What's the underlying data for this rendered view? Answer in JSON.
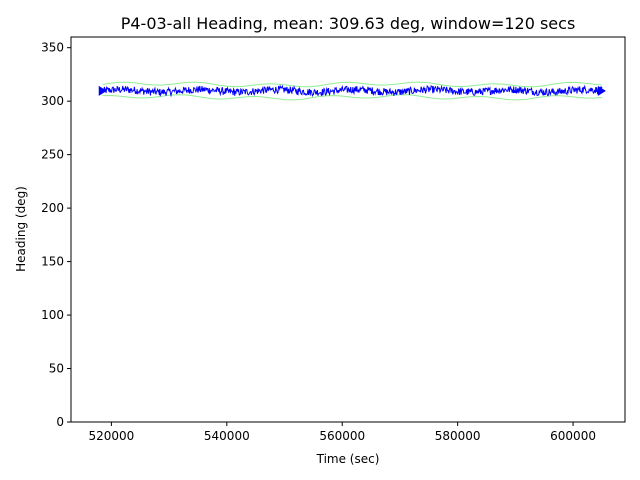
{
  "chart_data": {
    "type": "line",
    "title": "P4-03-all Heading, mean: 309.63 deg, window=120 secs",
    "xlabel": "Time (sec)",
    "ylabel": "Heading (deg)",
    "xlim": [
      513000,
      609000
    ],
    "ylim": [
      0,
      360
    ],
    "xticks": [
      520000,
      540000,
      560000,
      580000,
      600000
    ],
    "xtick_labels": [
      "520000",
      "540000",
      "560000",
      "580000",
      "600000"
    ],
    "yticks": [
      0,
      50,
      100,
      150,
      200,
      250,
      300,
      350
    ],
    "ytick_labels": [
      "0",
      "50",
      "100",
      "150",
      "200",
      "250",
      "300",
      "350"
    ],
    "grid": false,
    "x_range": [
      518500,
      605000
    ],
    "series": [
      {
        "role": "heading",
        "color": "#0000ff",
        "mean": 309.63,
        "spread": 3.5,
        "marker_color": "#0000ff"
      },
      {
        "role": "upper-envelope",
        "color": "#90ee90",
        "offset": 6
      },
      {
        "role": "lower-envelope",
        "color": "#90ee90",
        "offset": -6
      }
    ]
  }
}
